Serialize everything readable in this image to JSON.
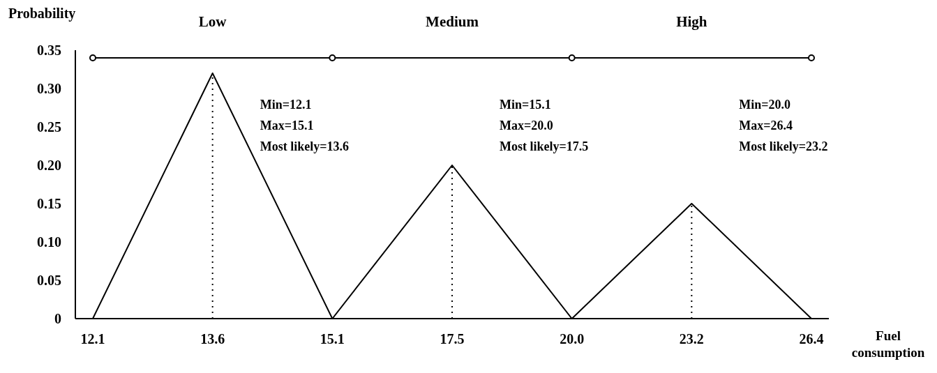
{
  "chart_data": {
    "type": "line",
    "xlabel": "Fuel consumption",
    "ylabel": "Probability",
    "categories": [
      "12.1",
      "13.6",
      "15.1",
      "17.5",
      "20.0",
      "23.2",
      "26.4"
    ],
    "series": [
      {
        "color": "#000000",
        "values": [
          0,
          0.32,
          0,
          null,
          null,
          null,
          null
        ],
        "marker": "none"
      },
      {
        "color": "#000000",
        "values": [
          null,
          null,
          0,
          0.2,
          0,
          null,
          null
        ],
        "marker": "none"
      },
      {
        "color": "#000000",
        "values": [
          null,
          null,
          null,
          null,
          0,
          0.15,
          0
        ],
        "marker": "none"
      },
      {
        "color": "#000000",
        "values": [
          0.34,
          null,
          0.34,
          null,
          0.34,
          null,
          0.34
        ],
        "marker": "circle"
      }
    ],
    "ylim": [
      0,
      0.35
    ],
    "yticks": [
      0,
      {
        "value": 0.05,
        "label": "0.05"
      },
      {
        "value": 0.1,
        "label": "0.10"
      },
      {
        "value": 0.15,
        "label": "0.15"
      },
      {
        "value": 0.2,
        "label": "0.20"
      },
      {
        "value": 0.25,
        "label": "0.25"
      },
      {
        "value": 0.3,
        "label": "0.30"
      },
      {
        "value": 0.35,
        "label": "0.35"
      }
    ],
    "ref_lines": [
      {
        "axis": "x",
        "value": "13.6",
        "line_style": "dotted",
        "color": "#000000"
      },
      {
        "axis": "x",
        "value": "17.5",
        "line_style": "dotted",
        "color": "#000000"
      },
      {
        "axis": "x",
        "value": "23.2",
        "line_style": "dotted",
        "color": "#000000"
      }
    ],
    "annotations": [
      "Low",
      "Medium",
      "High",
      "Min=12.1\nMax=15.1\nMost likely=13.6",
      "Min=15.1\nMax=20.0\nMost likely=17.5",
      "Min=20.0\nMax=26.4\nMost likely=23.2"
    ],
    "grid": false,
    "line_style": "solid"
  }
}
